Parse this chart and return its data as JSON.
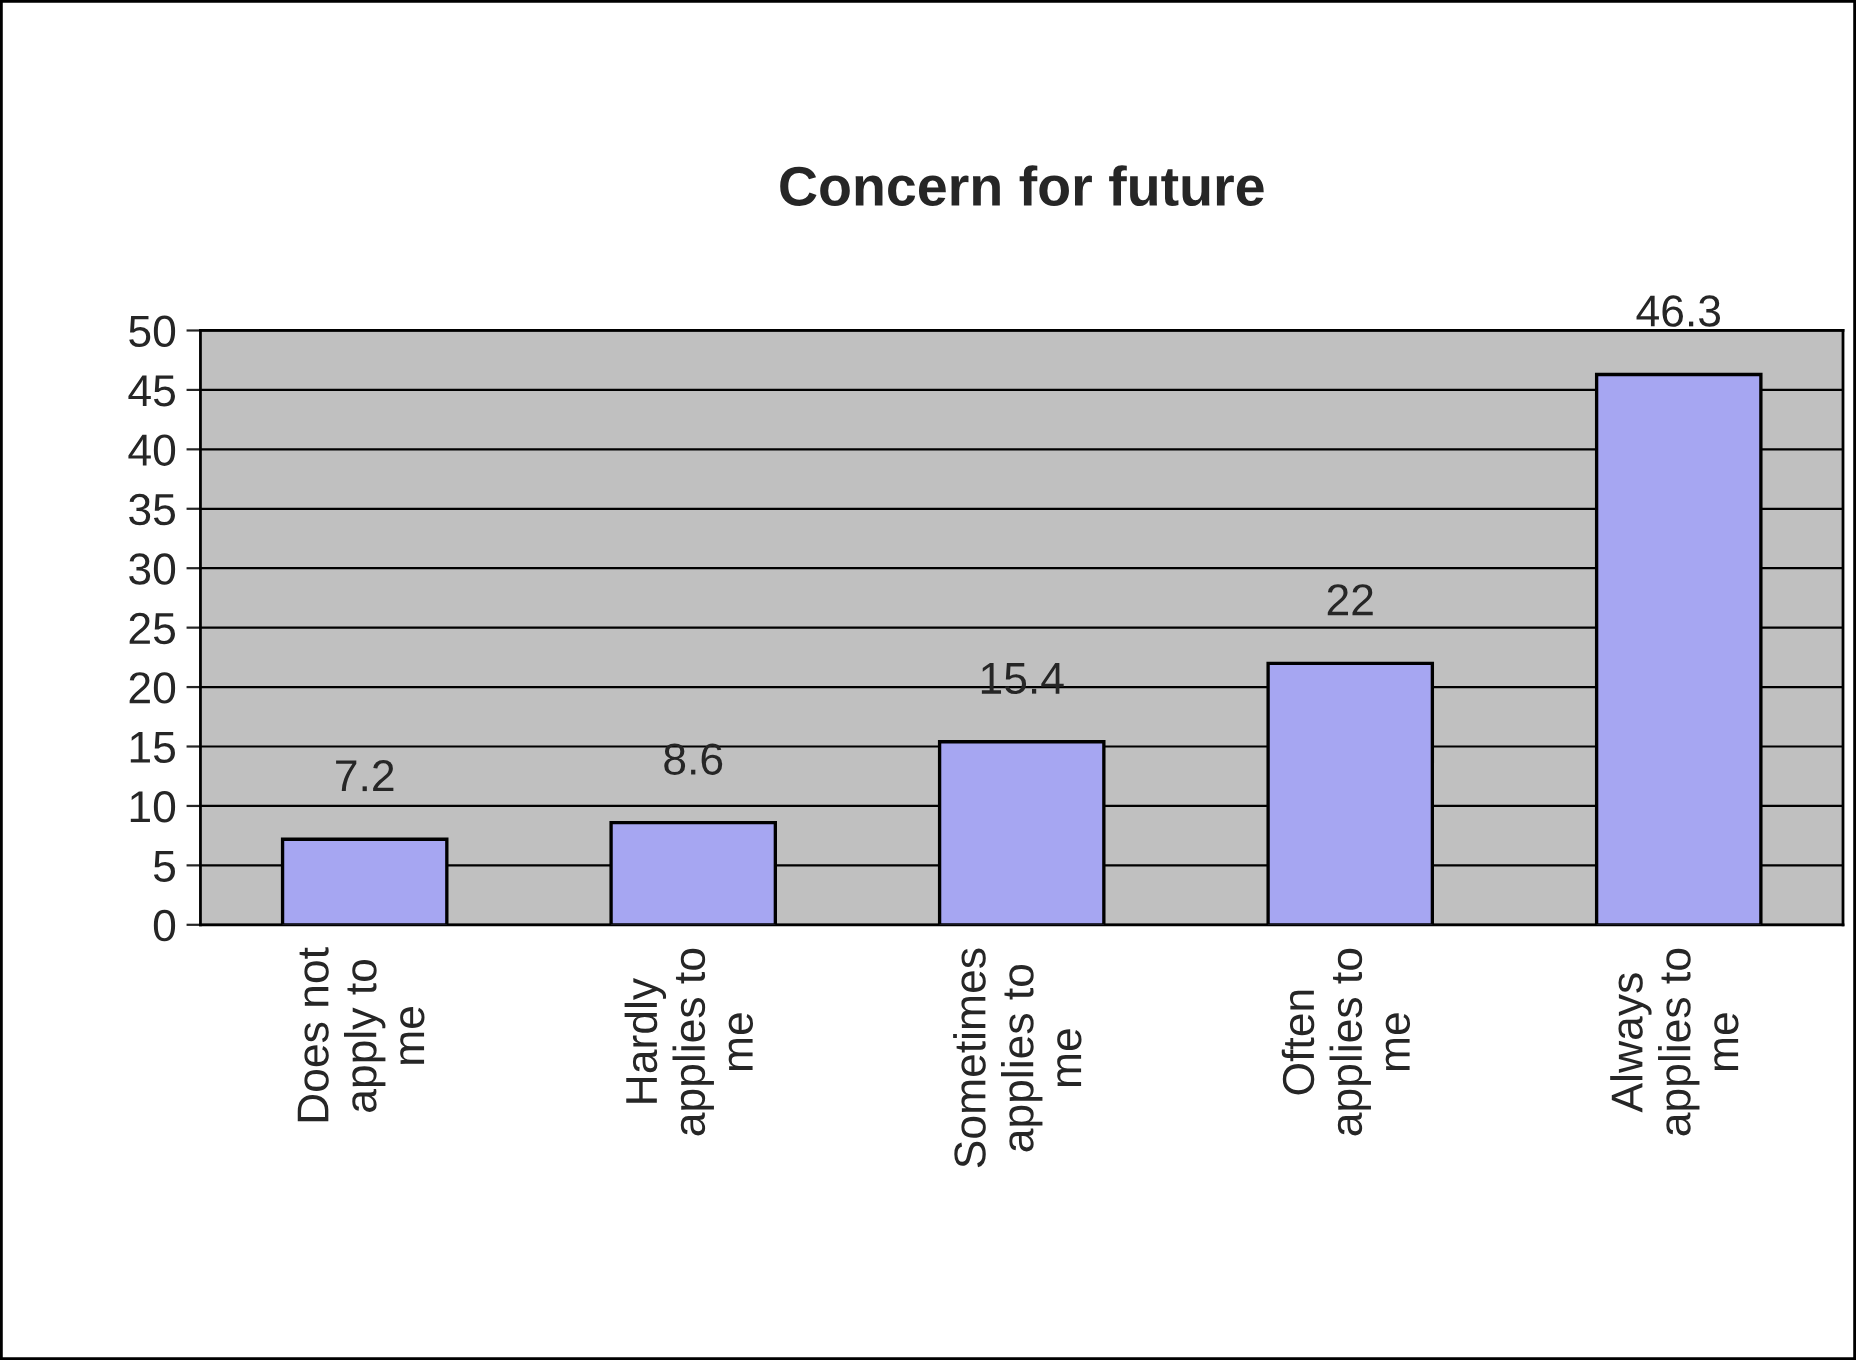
{
  "chart_data": {
    "type": "bar",
    "title": "Concern for future",
    "categories": [
      "Does not\napply to\nme",
      "Hardly\napplies to\nme",
      "Sometimes\napplies to\nme",
      "Often\napplies to\nme",
      "Always\napplies to\nme"
    ],
    "values": [
      7.2,
      8.6,
      15.4,
      22,
      46.3
    ],
    "color": "#9999ff",
    "ylim": [
      0,
      50
    ],
    "yticks": [
      0,
      5,
      10,
      15,
      20,
      25,
      30,
      35,
      40,
      45,
      50
    ],
    "grid": "y",
    "data_labels": true,
    "legend": false
  }
}
